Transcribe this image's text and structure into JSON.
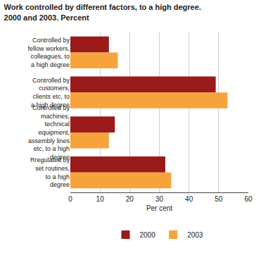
{
  "chart_data": {
    "type": "bar",
    "orientation": "horizontal",
    "title": "Work controlled by different factors, to a high degree. 2000 and 2003. Percent",
    "categories": [
      "Controlled by fellow workers, colleagues, to a high degree",
      "Controlled by customers, clients etc, to a high degree",
      "Controlled by machines, technical equipment, assembly lines etc, to a high degree",
      "Rregulated by set routines, to a high degree"
    ],
    "series": [
      {
        "name": "2000",
        "color": "#9b1a1a",
        "values": [
          13,
          49,
          15,
          32
        ]
      },
      {
        "name": "2003",
        "color": "#f7a33c",
        "values": [
          16,
          53,
          13,
          34
        ]
      }
    ],
    "x_label": "Per cent",
    "xlim": [
      0,
      60
    ],
    "xticks": [
      0,
      10,
      20,
      30,
      40,
      50,
      60
    ],
    "grid": true,
    "legend": "bottom"
  }
}
